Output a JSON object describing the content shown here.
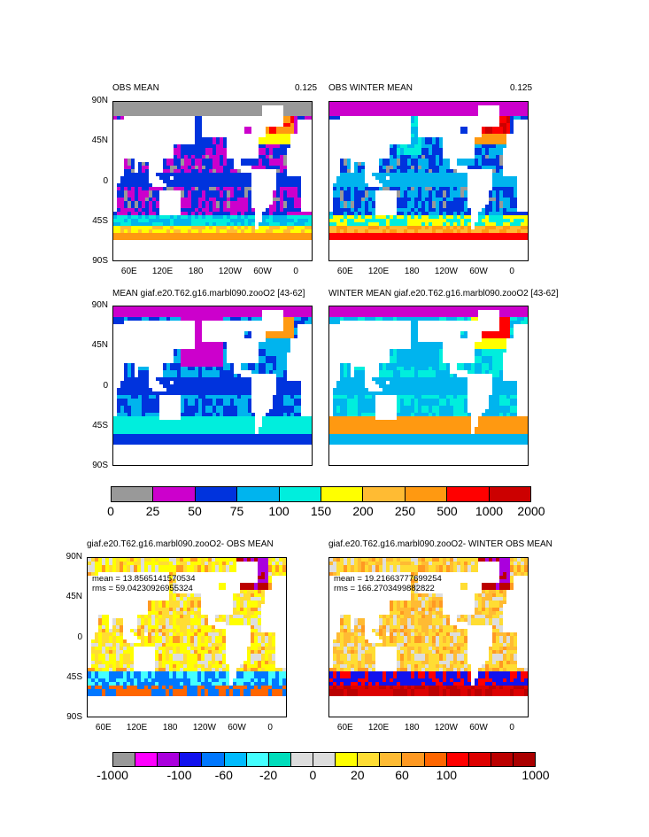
{
  "panels": [
    {
      "id": "p1",
      "title": "OBS MEAN",
      "right_text": "0.125",
      "palette": "pos",
      "field": "obs",
      "season": "mean",
      "y_ticks": [
        "90N",
        "45N",
        "0",
        "45S",
        "90S"
      ],
      "x_ticks": [
        "60E",
        "120E",
        "180",
        "120W",
        "60W",
        "0"
      ]
    },
    {
      "id": "p2",
      "title": "OBS WINTER MEAN",
      "right_text": "0.125",
      "palette": "pos",
      "field": "obs",
      "season": "winter",
      "y_ticks": [],
      "x_ticks": [
        "60E",
        "120E",
        "180",
        "120W",
        "60W",
        "0"
      ]
    },
    {
      "id": "p3",
      "title": "MEAN giaf.e20.T62.g16.marbl090.zooO2 [43-62]",
      "right_text": "",
      "palette": "pos",
      "field": "model",
      "season": "mean",
      "y_ticks": [
        "90N",
        "45N",
        "0",
        "45S",
        "90S"
      ],
      "x_ticks": []
    },
    {
      "id": "p4",
      "title": "WINTER MEAN giaf.e20.T62.g16.marbl090.zooO2 [43-62]",
      "right_text": "",
      "palette": "pos",
      "field": "model",
      "season": "winter",
      "y_ticks": [],
      "x_ticks": []
    },
    {
      "id": "p5",
      "title": "giaf.e20.T62.g16.marbl090.zooO2- OBS MEAN",
      "right_text": "",
      "palette": "diff",
      "field": "diff",
      "season": "mean",
      "stats": {
        "mean": "mean = 13.8565141570534",
        "rms": "rms = 59.04230926955324"
      },
      "y_ticks": [
        "90N",
        "45N",
        "0",
        "45S",
        "90S"
      ],
      "x_ticks": [
        "60E",
        "120E",
        "180",
        "120W",
        "60W",
        "0"
      ]
    },
    {
      "id": "p6",
      "title": "giaf.e20.T62.g16.marbl090.zooO2- WINTER OBS MEAN",
      "right_text": "",
      "palette": "diff",
      "field": "diff",
      "season": "winter",
      "stats": {
        "mean": "mean = 19.21663777699254",
        "rms": "rms = 166.2703499882822"
      },
      "y_ticks": [],
      "x_ticks": [
        "60E",
        "120E",
        "180",
        "120W",
        "60W",
        "0"
      ]
    }
  ],
  "colorbar_top": {
    "labels": [
      "0",
      "25",
      "50",
      "75",
      "100",
      "150",
      "200",
      "250",
      "500",
      "1000",
      "2000"
    ],
    "colors": [
      "#999999",
      "#cc00cc",
      "#0033dd",
      "#00b4ee",
      "#00eedd",
      "#ffff00",
      "#ffbb33",
      "#ff9911",
      "#ff0000",
      "#cc0000"
    ]
  },
  "colorbar_bottom": {
    "labels": [
      "-1000",
      "-100",
      "-60",
      "-20",
      "0",
      "20",
      "60",
      "100",
      "1000"
    ],
    "label_slots": [
      0,
      3,
      5,
      7,
      9,
      11,
      13,
      15,
      19
    ],
    "colors": [
      "#999999",
      "#ff00ff",
      "#aa00dd",
      "#1111ee",
      "#0077ff",
      "#00bbff",
      "#44ffff",
      "#00ddbb",
      "#dddddd",
      "#dddddd",
      "#ffff00",
      "#ffdd33",
      "#ffbb33",
      "#ff9922",
      "#ff6600",
      "#ff0000",
      "#dd0000",
      "#bb0000",
      "#aa0000"
    ]
  }
}
